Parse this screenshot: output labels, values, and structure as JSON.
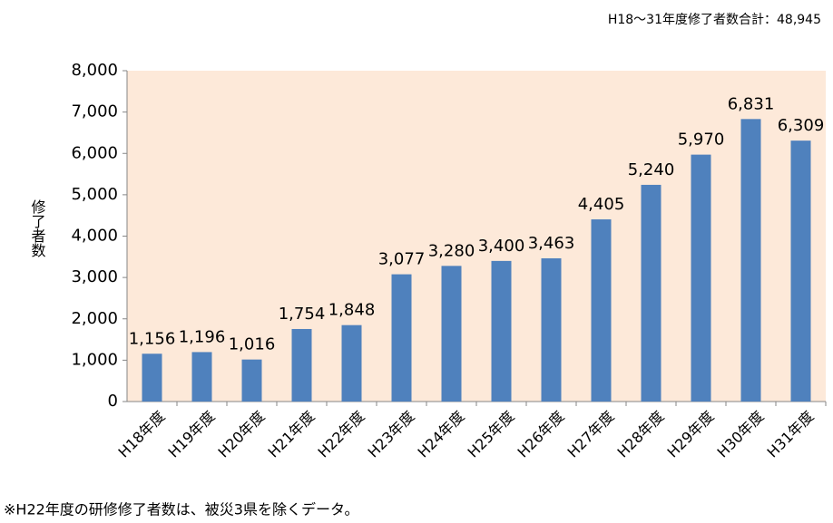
{
  "chart_data": {
    "type": "bar",
    "title": "H18〜31年度修了者数合計：48,945",
    "y_label": "修了者数",
    "footnote": "※H22年度の研修修了者数は、被災3県を除くデータ。",
    "categories": [
      "H18年度",
      "H19年度",
      "H20年度",
      "H21年度",
      "H22年度",
      "H23年度",
      "H24年度",
      "H25年度",
      "H26年度",
      "H27年度",
      "H28年度",
      "H29年度",
      "H30年度",
      "H31年度"
    ],
    "values": [
      1156,
      1196,
      1016,
      1754,
      1848,
      3077,
      3280,
      3400,
      3463,
      4405,
      5240,
      5970,
      6831,
      6309
    ],
    "value_labels": [
      "1,156",
      "1,196",
      "1,016",
      "1,754",
      "1,848",
      "3,077",
      "3,280",
      "3,400",
      "3,463",
      "4,405",
      "5,240",
      "5,970",
      "6,831",
      "6,309"
    ],
    "color": "#4f81bd",
    "plot_background": "#fde9d9",
    "ylim": [
      0,
      8000
    ],
    "yticks": [
      0,
      {
        "value": 1000,
        "label": "1,000"
      },
      {
        "value": 2000,
        "label": "2,000"
      },
      {
        "value": 3000,
        "label": "3,000"
      },
      {
        "value": 4000,
        "label": "4,000"
      },
      {
        "value": 5000,
        "label": "5,000"
      },
      {
        "value": 6000,
        "label": "6,000"
      },
      {
        "value": 7000,
        "label": "7,000"
      },
      {
        "value": 8000,
        "label": "8,000"
      }
    ],
    "grid": false
  }
}
